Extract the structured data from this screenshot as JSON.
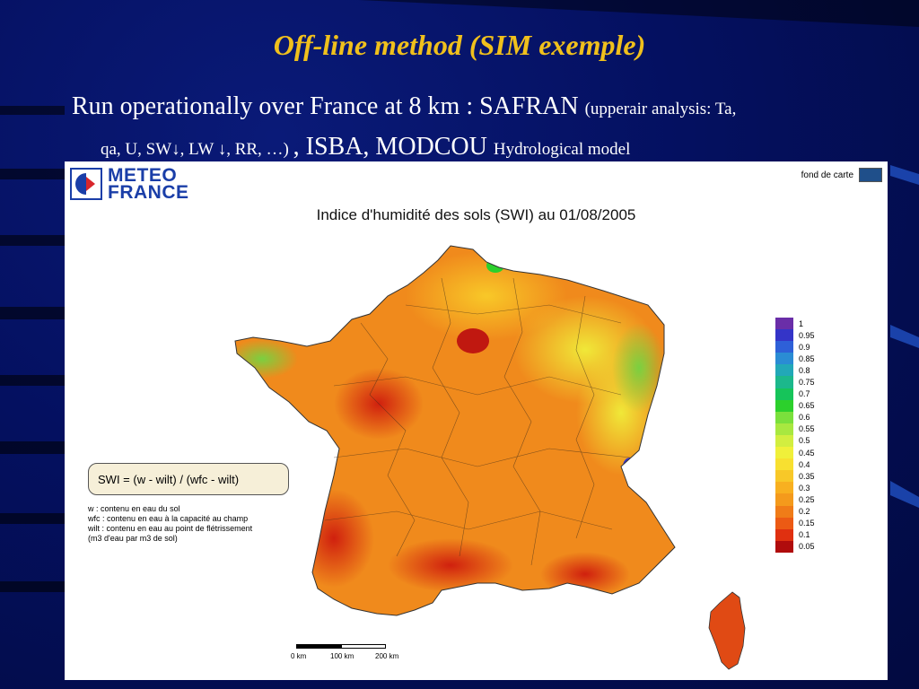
{
  "slide": {
    "title": "Off-line method (SIM exemple)",
    "line1_main": "Run operationally over France at 8 km : SAFRAN ",
    "line1_small": "(upperair analysis: Ta,",
    "line2_small_a": "qa, U, SW↓, LW ↓, RR, …) ",
    "line2_main": ", ISBA, MODCOU ",
    "line2_small_b": "Hydrological model"
  },
  "map": {
    "logo_text_1": "METEO",
    "logo_text_2": "FRANCE",
    "fond_label": "fond de carte",
    "title": "Indice d'humidité des sols (SWI) au 01/08/2005",
    "formula": "SWI = (w - wilt) / (wfc - wilt)",
    "definitions": [
      "w : contenu en eau du sol",
      "wfc : contenu en eau à la capacité au champ",
      "wilt : contenu en eau au point de flétrissement",
      "(m3 d'eau par m3 de sol)"
    ],
    "legend": [
      {
        "label": "1",
        "color": "#6a2ea8"
      },
      {
        "label": "0.95",
        "color": "#3434c8"
      },
      {
        "label": "0.9",
        "color": "#2e60d8"
      },
      {
        "label": "0.85",
        "color": "#2a8cd4"
      },
      {
        "label": "0.8",
        "color": "#22a8b8"
      },
      {
        "label": "0.75",
        "color": "#1cb88c"
      },
      {
        "label": "0.7",
        "color": "#16c45a"
      },
      {
        "label": "0.65",
        "color": "#2cd02c"
      },
      {
        "label": "0.6",
        "color": "#7ae03c"
      },
      {
        "label": "0.55",
        "color": "#a8e840"
      },
      {
        "label": "0.5",
        "color": "#d2ee40"
      },
      {
        "label": "0.45",
        "color": "#f0f03a"
      },
      {
        "label": "0.4",
        "color": "#f8e030"
      },
      {
        "label": "0.35",
        "color": "#f8c828"
      },
      {
        "label": "0.3",
        "color": "#f8b020"
      },
      {
        "label": "0.25",
        "color": "#f49a1c"
      },
      {
        "label": "0.2",
        "color": "#f07c18"
      },
      {
        "label": "0.15",
        "color": "#ec5a14"
      },
      {
        "label": "0.1",
        "color": "#e03010"
      },
      {
        "label": "0.05",
        "color": "#b00c0c"
      }
    ],
    "scale_labels": [
      "0 km",
      "100 km",
      "200 km"
    ]
  }
}
